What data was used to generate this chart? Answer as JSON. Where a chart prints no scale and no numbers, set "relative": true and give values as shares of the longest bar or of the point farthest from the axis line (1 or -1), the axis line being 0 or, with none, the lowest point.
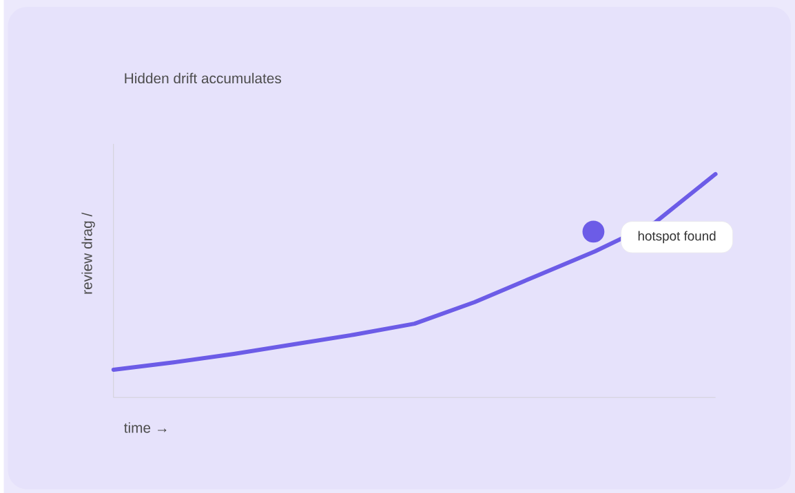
{
  "chart_data": {
    "type": "line",
    "title": "Hidden drift accumulates",
    "xlabel": "time →",
    "ylabel": "review drag /",
    "categories": [
      null,
      null,
      null,
      null,
      null,
      null,
      null,
      null,
      null,
      null,
      null
    ],
    "relative": true,
    "series": [
      {
        "color": "#6c5ce7",
        "values": [
          0.124,
          0.157,
          0.195,
          0.238,
          0.281,
          0.33,
          0.427,
          0.541,
          0.654,
          0.784,
          1.0
        ]
      }
    ],
    "annotations": [
      "hotspot found"
    ]
  }
}
